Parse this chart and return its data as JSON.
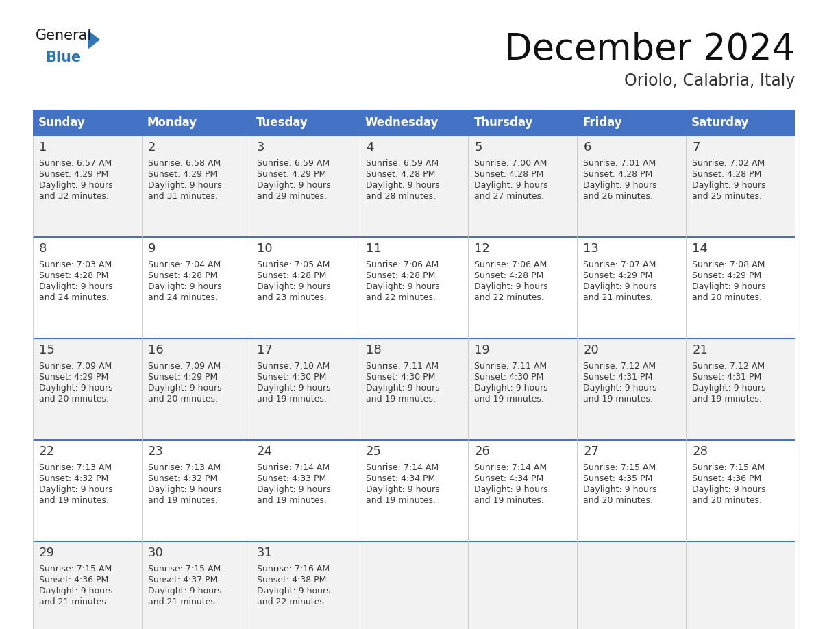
{
  "title": "December 2024",
  "subtitle": "Oriolo, Calabria, Italy",
  "header_color": "#4472C4",
  "header_text_color": "#FFFFFF",
  "day_names": [
    "Sunday",
    "Monday",
    "Tuesday",
    "Wednesday",
    "Thursday",
    "Friday",
    "Saturday"
  ],
  "cell_bg_even": "#F2F2F2",
  "cell_bg_odd": "#FFFFFF",
  "line_color": "#4472C4",
  "text_color": "#3B3B3B",
  "number_color": "#3B3B3B",
  "logo_general_color": "#1A1A1A",
  "logo_blue_color": "#2E75B6",
  "title_fontsize": 38,
  "subtitle_fontsize": 17,
  "dayname_fontsize": 12,
  "daynumber_fontsize": 13,
  "cell_fontsize": 9,
  "days": [
    {
      "day": 1,
      "col": 0,
      "row": 0,
      "sunrise": "6:57 AM",
      "sunset": "4:29 PM",
      "daylight": "9 hours and 32 minutes"
    },
    {
      "day": 2,
      "col": 1,
      "row": 0,
      "sunrise": "6:58 AM",
      "sunset": "4:29 PM",
      "daylight": "9 hours and 31 minutes"
    },
    {
      "day": 3,
      "col": 2,
      "row": 0,
      "sunrise": "6:59 AM",
      "sunset": "4:29 PM",
      "daylight": "9 hours and 29 minutes"
    },
    {
      "day": 4,
      "col": 3,
      "row": 0,
      "sunrise": "6:59 AM",
      "sunset": "4:28 PM",
      "daylight": "9 hours and 28 minutes"
    },
    {
      "day": 5,
      "col": 4,
      "row": 0,
      "sunrise": "7:00 AM",
      "sunset": "4:28 PM",
      "daylight": "9 hours and 27 minutes"
    },
    {
      "day": 6,
      "col": 5,
      "row": 0,
      "sunrise": "7:01 AM",
      "sunset": "4:28 PM",
      "daylight": "9 hours and 26 minutes"
    },
    {
      "day": 7,
      "col": 6,
      "row": 0,
      "sunrise": "7:02 AM",
      "sunset": "4:28 PM",
      "daylight": "9 hours and 25 minutes"
    },
    {
      "day": 8,
      "col": 0,
      "row": 1,
      "sunrise": "7:03 AM",
      "sunset": "4:28 PM",
      "daylight": "9 hours and 24 minutes"
    },
    {
      "day": 9,
      "col": 1,
      "row": 1,
      "sunrise": "7:04 AM",
      "sunset": "4:28 PM",
      "daylight": "9 hours and 24 minutes"
    },
    {
      "day": 10,
      "col": 2,
      "row": 1,
      "sunrise": "7:05 AM",
      "sunset": "4:28 PM",
      "daylight": "9 hours and 23 minutes"
    },
    {
      "day": 11,
      "col": 3,
      "row": 1,
      "sunrise": "7:06 AM",
      "sunset": "4:28 PM",
      "daylight": "9 hours and 22 minutes"
    },
    {
      "day": 12,
      "col": 4,
      "row": 1,
      "sunrise": "7:06 AM",
      "sunset": "4:28 PM",
      "daylight": "9 hours and 22 minutes"
    },
    {
      "day": 13,
      "col": 5,
      "row": 1,
      "sunrise": "7:07 AM",
      "sunset": "4:29 PM",
      "daylight": "9 hours and 21 minutes"
    },
    {
      "day": 14,
      "col": 6,
      "row": 1,
      "sunrise": "7:08 AM",
      "sunset": "4:29 PM",
      "daylight": "9 hours and 20 minutes"
    },
    {
      "day": 15,
      "col": 0,
      "row": 2,
      "sunrise": "7:09 AM",
      "sunset": "4:29 PM",
      "daylight": "9 hours and 20 minutes"
    },
    {
      "day": 16,
      "col": 1,
      "row": 2,
      "sunrise": "7:09 AM",
      "sunset": "4:29 PM",
      "daylight": "9 hours and 20 minutes"
    },
    {
      "day": 17,
      "col": 2,
      "row": 2,
      "sunrise": "7:10 AM",
      "sunset": "4:30 PM",
      "daylight": "9 hours and 19 minutes"
    },
    {
      "day": 18,
      "col": 3,
      "row": 2,
      "sunrise": "7:11 AM",
      "sunset": "4:30 PM",
      "daylight": "9 hours and 19 minutes"
    },
    {
      "day": 19,
      "col": 4,
      "row": 2,
      "sunrise": "7:11 AM",
      "sunset": "4:30 PM",
      "daylight": "9 hours and 19 minutes"
    },
    {
      "day": 20,
      "col": 5,
      "row": 2,
      "sunrise": "7:12 AM",
      "sunset": "4:31 PM",
      "daylight": "9 hours and 19 minutes"
    },
    {
      "day": 21,
      "col": 6,
      "row": 2,
      "sunrise": "7:12 AM",
      "sunset": "4:31 PM",
      "daylight": "9 hours and 19 minutes"
    },
    {
      "day": 22,
      "col": 0,
      "row": 3,
      "sunrise": "7:13 AM",
      "sunset": "4:32 PM",
      "daylight": "9 hours and 19 minutes"
    },
    {
      "day": 23,
      "col": 1,
      "row": 3,
      "sunrise": "7:13 AM",
      "sunset": "4:32 PM",
      "daylight": "9 hours and 19 minutes"
    },
    {
      "day": 24,
      "col": 2,
      "row": 3,
      "sunrise": "7:14 AM",
      "sunset": "4:33 PM",
      "daylight": "9 hours and 19 minutes"
    },
    {
      "day": 25,
      "col": 3,
      "row": 3,
      "sunrise": "7:14 AM",
      "sunset": "4:34 PM",
      "daylight": "9 hours and 19 minutes"
    },
    {
      "day": 26,
      "col": 4,
      "row": 3,
      "sunrise": "7:14 AM",
      "sunset": "4:34 PM",
      "daylight": "9 hours and 19 minutes"
    },
    {
      "day": 27,
      "col": 5,
      "row": 3,
      "sunrise": "7:15 AM",
      "sunset": "4:35 PM",
      "daylight": "9 hours and 20 minutes"
    },
    {
      "day": 28,
      "col": 6,
      "row": 3,
      "sunrise": "7:15 AM",
      "sunset": "4:36 PM",
      "daylight": "9 hours and 20 minutes"
    },
    {
      "day": 29,
      "col": 0,
      "row": 4,
      "sunrise": "7:15 AM",
      "sunset": "4:36 PM",
      "daylight": "9 hours and 21 minutes"
    },
    {
      "day": 30,
      "col": 1,
      "row": 4,
      "sunrise": "7:15 AM",
      "sunset": "4:37 PM",
      "daylight": "9 hours and 21 minutes"
    },
    {
      "day": 31,
      "col": 2,
      "row": 4,
      "sunrise": "7:16 AM",
      "sunset": "4:38 PM",
      "daylight": "9 hours and 22 minutes"
    }
  ]
}
